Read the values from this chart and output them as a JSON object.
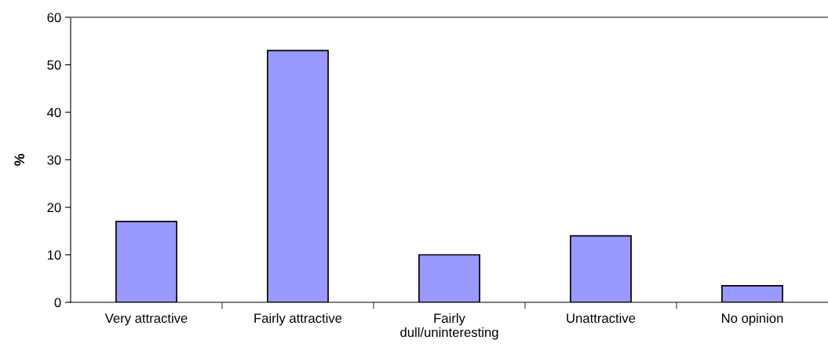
{
  "chart_data": {
    "type": "bar",
    "categories": [
      "Very attractive",
      "Fairly attractive",
      "Fairly\ndull/uninteresting",
      "Unattractive",
      "No opinion"
    ],
    "values": [
      17,
      53,
      10,
      14,
      3.5
    ],
    "color": "#9999ff",
    "ylabel": "%",
    "ylim": [
      0,
      60
    ],
    "yticks": [
      0,
      10,
      20,
      30,
      40,
      50,
      60
    ],
    "grid": false,
    "legend": false
  }
}
